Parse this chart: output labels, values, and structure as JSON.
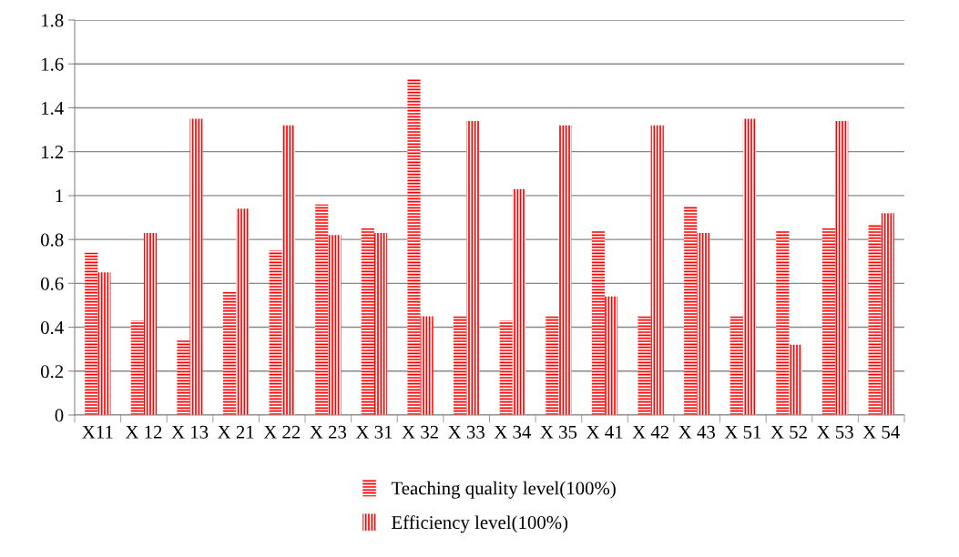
{
  "chart_data": {
    "type": "bar",
    "categories": [
      "X11",
      "X 12",
      "X 13",
      "X 21",
      "X 22",
      "X 23",
      "X 31",
      "X 32",
      "X 33",
      "X 34",
      "X 35",
      "X 41",
      "X 42",
      "X 43",
      "X 51",
      "X 52",
      "X 53",
      "X 54"
    ],
    "series": [
      {
        "name": "Teaching quality level(100%)",
        "color": "#ff0000",
        "values": [
          0.74,
          0.43,
          0.34,
          0.56,
          0.75,
          0.96,
          0.85,
          1.53,
          0.45,
          0.43,
          0.45,
          0.84,
          0.45,
          0.95,
          0.45,
          0.84,
          0.85,
          0.87
        ]
      },
      {
        "name": "Efficiency level(100%)",
        "color": "#ff0000",
        "values": [
          0.65,
          0.83,
          1.35,
          0.94,
          1.32,
          0.82,
          0.83,
          0.45,
          1.34,
          1.03,
          1.32,
          0.54,
          1.32,
          0.83,
          1.35,
          0.32,
          1.34,
          0.92
        ]
      }
    ],
    "ylim": [
      0,
      1.8
    ],
    "yticks": [
      0,
      {
        "value": 0.2,
        "label": "0.2"
      },
      {
        "value": 0.4,
        "label": "0.4"
      },
      {
        "value": 0.6,
        "label": "0.6"
      },
      {
        "value": 0.8,
        "label": "0.8"
      },
      1,
      {
        "value": 1.2,
        "label": "1.2"
      },
      {
        "value": 1.4,
        "label": "1.4"
      },
      {
        "value": 1.6,
        "label": "1.6"
      },
      {
        "value": 1.8,
        "label": "1.8"
      }
    ],
    "grid": "y",
    "legend": "bottom"
  }
}
